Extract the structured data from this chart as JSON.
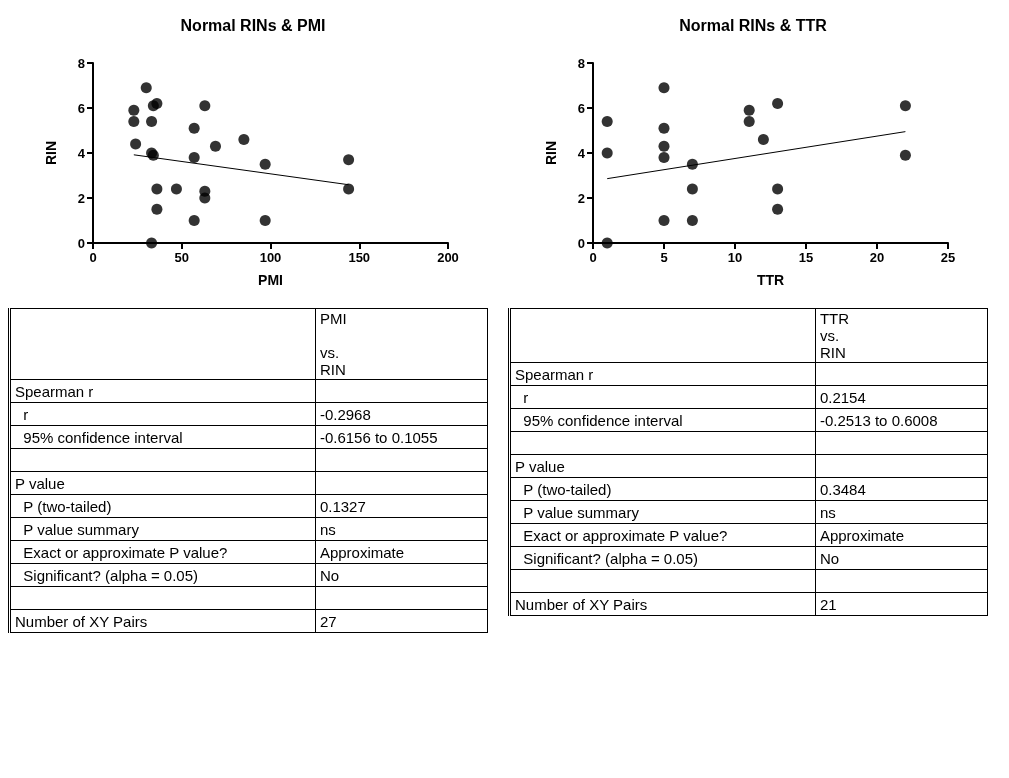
{
  "chart_data": [
    {
      "type": "scatter",
      "title": "Normal RINs & PMI",
      "xlabel": "PMI",
      "ylabel": "RIN",
      "xlim": [
        0,
        200
      ],
      "xticks": [
        0,
        50,
        100,
        150,
        200
      ],
      "ylim": [
        0,
        8
      ],
      "yticks": [
        0,
        2,
        4,
        6,
        8
      ],
      "marker": "circle",
      "grid": false,
      "series": [
        {
          "type": "scatter",
          "color": "#000000",
          "x": [
            23,
            23,
            24,
            30,
            33,
            34,
            36,
            33,
            34,
            36,
            36,
            33,
            47,
            57,
            57,
            57,
            63,
            63,
            63,
            69,
            85,
            97,
            97,
            144,
            144
          ],
          "values": [
            5.9,
            5.4,
            4.4,
            6.9,
            5.4,
            6.1,
            6.2,
            4.0,
            3.9,
            2.4,
            1.5,
            0,
            2.4,
            5.1,
            3.8,
            1.0,
            6.1,
            2.3,
            2.0,
            4.3,
            4.6,
            3.5,
            1.0,
            3.7,
            2.4
          ]
        },
        {
          "type": "line",
          "color": "#000000",
          "marker": "none",
          "x": [
            23,
            144
          ],
          "values": [
            3.92,
            2.59
          ]
        }
      ]
    },
    {
      "type": "scatter",
      "title": "Normal RINs & TTR",
      "xlabel": "TTR",
      "ylabel": "RIN",
      "xlim": [
        0,
        25
      ],
      "xticks": [
        0,
        5,
        10,
        15,
        20,
        25
      ],
      "ylim": [
        0,
        8
      ],
      "yticks": [
        0,
        2,
        4,
        6,
        8
      ],
      "marker": "circle",
      "grid": false,
      "series": [
        {
          "type": "scatter",
          "color": "#000000",
          "x": [
            1,
            1,
            1,
            5,
            5,
            5,
            5,
            5,
            7,
            7,
            7,
            11,
            11,
            12,
            13,
            13,
            13,
            22,
            22
          ],
          "values": [
            5.4,
            4.0,
            0,
            6.9,
            5.1,
            4.3,
            3.8,
            1.0,
            3.5,
            2.4,
            1.0,
            5.9,
            5.4,
            4.6,
            6.2,
            2.4,
            1.5,
            6.1,
            3.9
          ]
        },
        {
          "type": "line",
          "color": "#000000",
          "marker": "none",
          "x": [
            1,
            22
          ],
          "values": [
            2.86,
            4.95
          ]
        }
      ]
    },
    {
      "type": "other",
      "annotations": [
        null,
        "PMI\n\nvs.\nRIN",
        "Spearman r",
        null,
        "  r",
        "-0.2968",
        "  95% confidence interval",
        "-0.6156 to 0.1055",
        null,
        null,
        "P value",
        null,
        "  P (two-tailed)",
        "0.1327",
        "  P value summary",
        "ns",
        "  Exact or approximate P value?",
        "Approximate",
        "  Significant? (alpha = 0.05)",
        "No",
        null,
        null,
        "Number of XY Pairs",
        "27"
      ]
    },
    {
      "type": "other",
      "annotations": [
        null,
        "TTR\nvs.\nRIN",
        "Spearman r",
        null,
        "  r",
        "0.2154",
        "  95% confidence interval",
        "-0.2513 to 0.6008",
        null,
        null,
        "P value",
        null,
        "  P (two-tailed)",
        "0.3484",
        "  P value summary",
        "ns",
        "  Exact or approximate P value?",
        "Approximate",
        "  Significant? (alpha = 0.05)",
        "No",
        null,
        null,
        "Number of XY Pairs",
        "21"
      ]
    }
  ]
}
